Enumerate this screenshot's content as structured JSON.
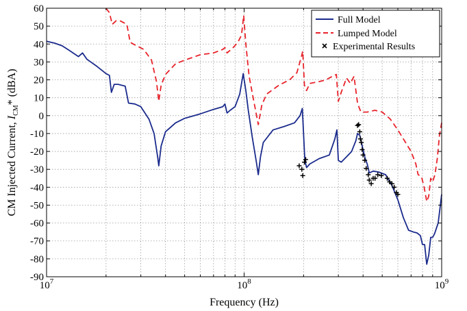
{
  "chart_data": {
    "type": "line",
    "xscale": "log",
    "xlim": [
      10000000,
      1000000000
    ],
    "ylim": [
      -90,
      60
    ],
    "xlabel": "Frequency (Hz)",
    "ylabel": "CM Injected Current, I_CM* (dBA)",
    "ylabel_parts": {
      "prefix": "CM Injected Current, ",
      "var": "I",
      "sub": "CM",
      "suffix": "* (dBA)"
    },
    "grid": true,
    "legend_position": "top-right",
    "x_ticks": [
      {
        "value": 10000000,
        "base": "10",
        "exp": "7"
      },
      {
        "value": 100000000,
        "base": "10",
        "exp": "8"
      },
      {
        "value": 1000000000,
        "base": "10",
        "exp": "9"
      }
    ],
    "y_ticks": [
      60,
      50,
      40,
      30,
      20,
      10,
      0,
      -10,
      -20,
      -30,
      -40,
      -50,
      -60,
      -70,
      -80,
      -90
    ],
    "series": [
      {
        "name": "Full Model",
        "style": "solid",
        "color": "#1a2a8c",
        "points": [
          [
            10000000,
            41.5
          ],
          [
            11000000,
            40.5
          ],
          [
            12000000,
            39
          ],
          [
            13000000,
            36.5
          ],
          [
            14500000,
            33
          ],
          [
            15200000,
            35
          ],
          [
            16000000,
            31.5
          ],
          [
            18000000,
            27.5
          ],
          [
            20000000,
            23.5
          ],
          [
            20800000,
            22.5
          ],
          [
            21300000,
            13
          ],
          [
            22000000,
            17.5
          ],
          [
            23000000,
            17.5
          ],
          [
            25000000,
            16.5
          ],
          [
            26000000,
            7
          ],
          [
            28000000,
            6.5
          ],
          [
            30000000,
            5
          ],
          [
            33000000,
            -2
          ],
          [
            35000000,
            -10
          ],
          [
            36500000,
            -23
          ],
          [
            37000000,
            -28
          ],
          [
            38000000,
            -17
          ],
          [
            40000000,
            -9
          ],
          [
            45000000,
            -4
          ],
          [
            50000000,
            -1.5
          ],
          [
            60000000,
            1
          ],
          [
            70000000,
            3.5
          ],
          [
            78000000,
            5
          ],
          [
            80000000,
            6.5
          ],
          [
            82000000,
            1.5
          ],
          [
            85000000,
            3
          ],
          [
            90000000,
            5
          ],
          [
            95000000,
            12
          ],
          [
            99000000,
            23.5
          ],
          [
            102000000,
            14
          ],
          [
            105000000,
            3
          ],
          [
            110000000,
            -12
          ],
          [
            115000000,
            -25
          ],
          [
            118000000,
            -33
          ],
          [
            121000000,
            -23
          ],
          [
            125000000,
            -15
          ],
          [
            140000000,
            -8
          ],
          [
            160000000,
            -6
          ],
          [
            180000000,
            -4
          ],
          [
            192000000,
            0
          ],
          [
            197000000,
            4
          ],
          [
            203000000,
            -25
          ],
          [
            207000000,
            -29
          ],
          [
            215000000,
            -27
          ],
          [
            240000000,
            -24
          ],
          [
            270000000,
            -22
          ],
          [
            288000000,
            -13
          ],
          [
            295000000,
            -8
          ],
          [
            300000000,
            -25
          ],
          [
            310000000,
            -26
          ],
          [
            330000000,
            -23
          ],
          [
            350000000,
            -20
          ],
          [
            368000000,
            -14
          ],
          [
            375000000,
            -10
          ],
          [
            385000000,
            -11
          ],
          [
            400000000,
            -19
          ],
          [
            410000000,
            -24
          ],
          [
            420000000,
            -27
          ],
          [
            430000000,
            -32
          ],
          [
            450000000,
            -31
          ],
          [
            480000000,
            -31.5
          ],
          [
            520000000,
            -33
          ],
          [
            560000000,
            -39
          ],
          [
            600000000,
            -47
          ],
          [
            640000000,
            -57
          ],
          [
            680000000,
            -64
          ],
          [
            720000000,
            -65
          ],
          [
            750000000,
            -65.5
          ],
          [
            780000000,
            -67
          ],
          [
            800000000,
            -72
          ],
          [
            820000000,
            -72
          ],
          [
            840000000,
            -83
          ],
          [
            860000000,
            -78
          ],
          [
            880000000,
            -68
          ],
          [
            900000000,
            -68
          ],
          [
            920000000,
            -66
          ],
          [
            960000000,
            -60
          ],
          [
            985000000,
            -50
          ],
          [
            1000000000,
            -44
          ]
        ]
      },
      {
        "name": "Lumped Model",
        "style": "dashed",
        "color": "#e8222a",
        "points": [
          [
            20000000,
            60
          ],
          [
            20800000,
            57.5
          ],
          [
            21500000,
            51
          ],
          [
            22500000,
            53
          ],
          [
            23500000,
            53
          ],
          [
            25500000,
            51
          ],
          [
            26500000,
            41
          ],
          [
            28000000,
            39.5
          ],
          [
            31000000,
            37
          ],
          [
            34000000,
            31
          ],
          [
            36000000,
            19
          ],
          [
            37000000,
            8
          ],
          [
            38000000,
            17
          ],
          [
            40000000,
            23
          ],
          [
            45000000,
            29
          ],
          [
            50000000,
            31
          ],
          [
            60000000,
            34
          ],
          [
            70000000,
            35
          ],
          [
            78000000,
            37
          ],
          [
            80000000,
            38
          ],
          [
            82000000,
            35
          ],
          [
            88000000,
            38
          ],
          [
            93000000,
            41
          ],
          [
            97000000,
            45
          ],
          [
            99500000,
            56
          ],
          [
            102000000,
            40
          ],
          [
            106000000,
            22
          ],
          [
            112000000,
            8
          ],
          [
            118000000,
            -5
          ],
          [
            123000000,
            6
          ],
          [
            130000000,
            12
          ],
          [
            150000000,
            17
          ],
          [
            170000000,
            20
          ],
          [
            185000000,
            24
          ],
          [
            195000000,
            33
          ],
          [
            198000000,
            36
          ],
          [
            202000000,
            17
          ],
          [
            207000000,
            14
          ],
          [
            215000000,
            18
          ],
          [
            240000000,
            19
          ],
          [
            260000000,
            20
          ],
          [
            280000000,
            22
          ],
          [
            293000000,
            23
          ],
          [
            300000000,
            8
          ],
          [
            310000000,
            13
          ],
          [
            330000000,
            21
          ],
          [
            345000000,
            18
          ],
          [
            360000000,
            22
          ],
          [
            375000000,
            7
          ],
          [
            390000000,
            2
          ],
          [
            420000000,
            2
          ],
          [
            460000000,
            3
          ],
          [
            500000000,
            2
          ],
          [
            550000000,
            -2
          ],
          [
            600000000,
            -8
          ],
          [
            640000000,
            -13
          ],
          [
            700000000,
            -20
          ],
          [
            740000000,
            -27
          ],
          [
            760000000,
            -33
          ],
          [
            790000000,
            -34
          ],
          [
            815000000,
            -40
          ],
          [
            840000000,
            -48
          ],
          [
            860000000,
            -45
          ],
          [
            880000000,
            -35
          ],
          [
            900000000,
            -37
          ],
          [
            925000000,
            -33
          ],
          [
            950000000,
            -24
          ],
          [
            975000000,
            -11
          ],
          [
            1000000000,
            -4
          ]
        ]
      },
      {
        "name": "Experimental Results",
        "style": "markers",
        "color": "#000000",
        "points": [
          [
            190000000,
            -28
          ],
          [
            196000000,
            -30
          ],
          [
            198000000,
            -33.5
          ],
          [
            202000000,
            -26
          ],
          [
            205000000,
            -24.5
          ],
          [
            375000000,
            -5.5
          ],
          [
            380000000,
            -5
          ],
          [
            385000000,
            -9
          ],
          [
            388000000,
            -13
          ],
          [
            392000000,
            -15
          ],
          [
            396000000,
            -19
          ],
          [
            400000000,
            -22
          ],
          [
            408000000,
            -25
          ],
          [
            415000000,
            -29.5
          ],
          [
            425000000,
            -33
          ],
          [
            430000000,
            -36
          ],
          [
            440000000,
            -38
          ],
          [
            450000000,
            -35
          ],
          [
            460000000,
            -35
          ],
          [
            475000000,
            -33
          ],
          [
            495000000,
            -33.5
          ],
          [
            530000000,
            -35
          ],
          [
            545000000,
            -37
          ],
          [
            560000000,
            -38
          ],
          [
            575000000,
            -40
          ],
          [
            590000000,
            -43
          ],
          [
            600000000,
            -44
          ]
        ]
      }
    ]
  }
}
